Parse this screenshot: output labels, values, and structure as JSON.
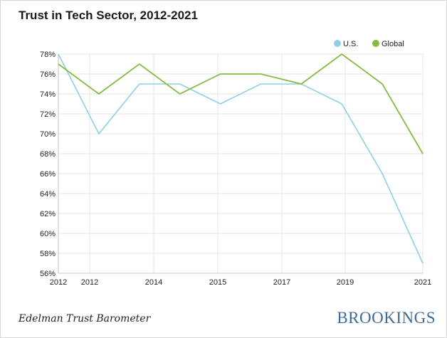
{
  "header": {
    "title": "Trust in Tech Sector, 2012-2021"
  },
  "footer": {
    "source": "Edelman Trust Barometer",
    "brand": "BROOKINGS"
  },
  "chart_data": {
    "type": "line",
    "title": "Trust in Tech Sector, 2012-2021",
    "xlabel": "",
    "ylabel": "",
    "x_ticks": [
      "2012",
      "2012",
      "2014",
      "2015",
      "2017",
      "2019",
      "2021"
    ],
    "y_ticks": [
      "56%",
      "58%",
      "60%",
      "62%",
      "64%",
      "66%",
      "68%",
      "70%",
      "72%",
      "74%",
      "76%",
      "78%"
    ],
    "ylim": [
      56,
      78
    ],
    "grid": true,
    "legend": "top-right",
    "series": [
      {
        "name": "U.S.",
        "color": "#8fd0e6",
        "values": [
          78,
          70,
          75,
          75,
          73,
          75,
          75,
          73,
          66,
          57
        ]
      },
      {
        "name": "Global",
        "color": "#86bc42",
        "values": [
          77,
          74,
          77,
          74,
          76,
          76,
          75,
          78,
          75,
          68
        ]
      }
    ]
  }
}
